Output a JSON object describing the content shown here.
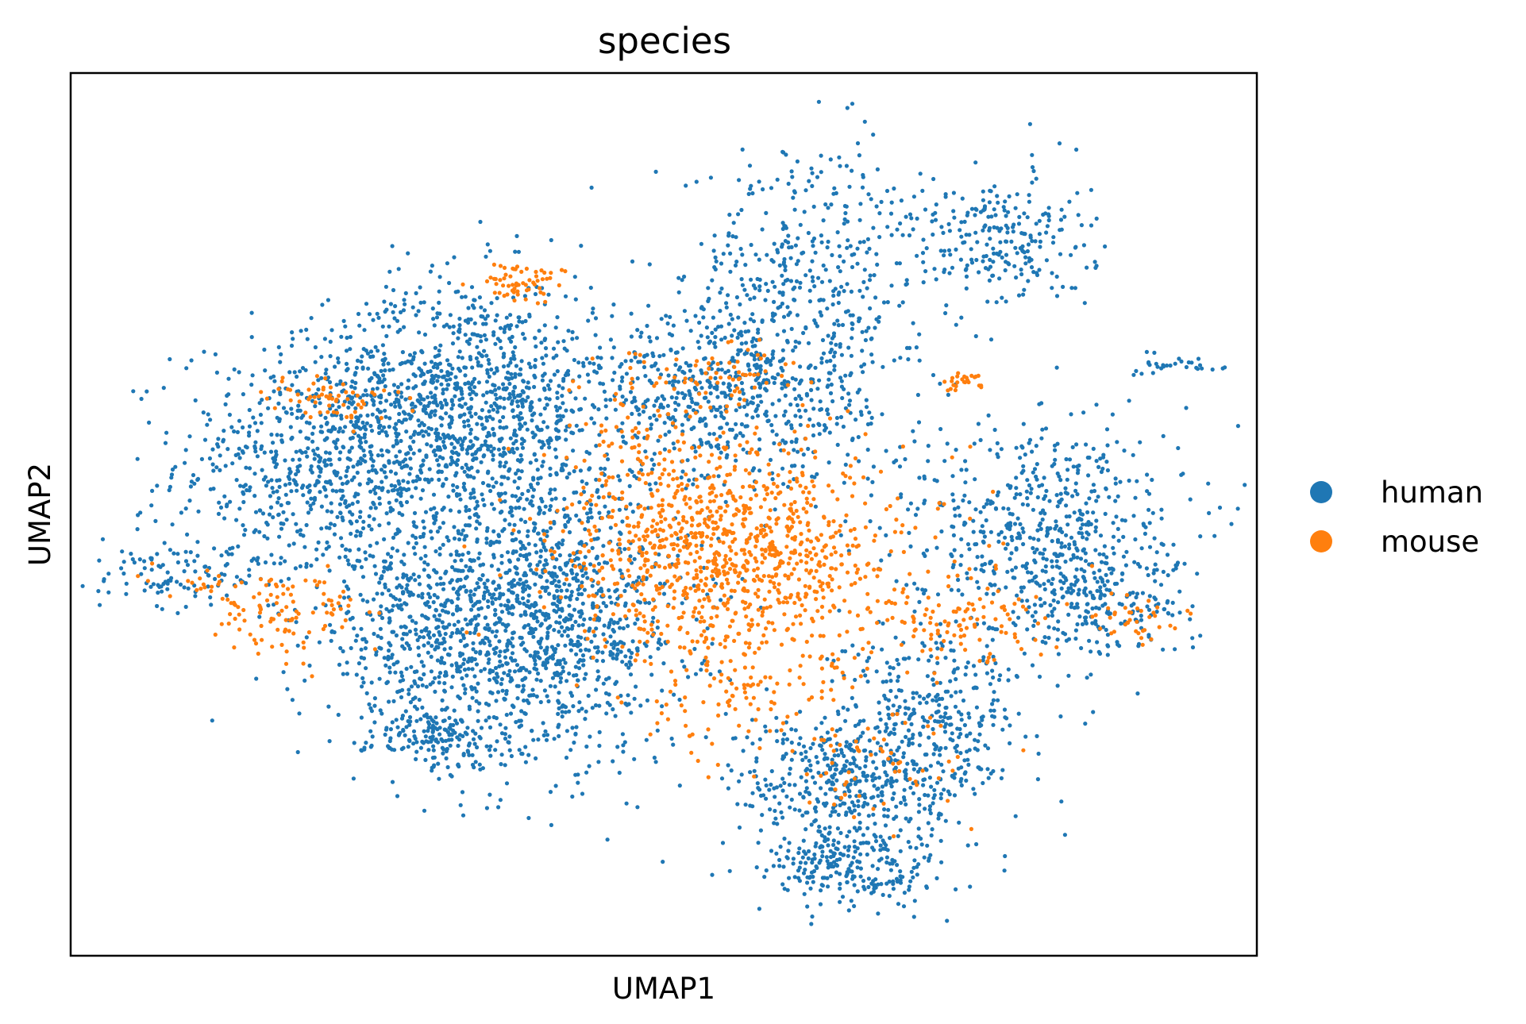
{
  "chart_data": {
    "type": "scatter",
    "title": "species",
    "xlabel": "UMAP1",
    "ylabel": "UMAP2",
    "xlim": [
      0,
      100
    ],
    "ylim": [
      0,
      100
    ],
    "ticks": "none",
    "grid": false,
    "legend_position": "right-center",
    "legend": [
      {
        "name": "human",
        "color": "#1f77b4"
      },
      {
        "name": "mouse",
        "color": "#ff7f0e"
      }
    ],
    "series": [
      {
        "name": "human",
        "color": "#1f77b4",
        "clusters": [
          {
            "cx": 22,
            "cy": 56,
            "sx": 6.5,
            "sy": 7,
            "n": 800
          },
          {
            "cx": 34,
            "cy": 63,
            "sx": 6,
            "sy": 7,
            "n": 1000
          },
          {
            "cx": 40,
            "cy": 38,
            "sx": 6,
            "sy": 8,
            "n": 1200
          },
          {
            "cx": 29,
            "cy": 37,
            "sx": 4,
            "sy": 6,
            "n": 400
          },
          {
            "cx": 31,
            "cy": 25,
            "sx": 3,
            "sy": 2,
            "n": 150
          },
          {
            "cx": 55,
            "cy": 63,
            "sx": 6,
            "sy": 5,
            "n": 550
          },
          {
            "cx": 62,
            "cy": 76,
            "sx": 5,
            "sy": 8,
            "n": 450
          },
          {
            "cx": 78,
            "cy": 81,
            "sx": 4,
            "sy": 4,
            "n": 250
          },
          {
            "cx": 94,
            "cy": 67,
            "sx": 1.8,
            "sy": 0.6,
            "n": 30
          },
          {
            "cx": 82,
            "cy": 49,
            "sx": 6,
            "sy": 6,
            "n": 550
          },
          {
            "cx": 86,
            "cy": 40,
            "sx": 4,
            "sy": 3,
            "n": 200
          },
          {
            "cx": 66,
            "cy": 20,
            "sx": 5,
            "sy": 4,
            "n": 450
          },
          {
            "cx": 66,
            "cy": 10,
            "sx": 4,
            "sy": 2.5,
            "n": 250
          },
          {
            "cx": 73,
            "cy": 28,
            "sx": 4,
            "sy": 5,
            "n": 300
          },
          {
            "cx": 9,
            "cy": 43,
            "sx": 4,
            "sy": 1.8,
            "n": 100
          }
        ]
      },
      {
        "name": "mouse",
        "color": "#ff7f0e",
        "clusters": [
          {
            "cx": 56,
            "cy": 46,
            "sx": 7,
            "sy": 6,
            "n": 1000
          },
          {
            "cx": 38,
            "cy": 76,
            "sx": 1.8,
            "sy": 1.2,
            "n": 60
          },
          {
            "cx": 55,
            "cy": 66,
            "sx": 3,
            "sy": 2,
            "n": 60
          },
          {
            "cx": 22,
            "cy": 63,
            "sx": 3,
            "sy": 1.5,
            "n": 60
          },
          {
            "cx": 18,
            "cy": 39,
            "sx": 3,
            "sy": 2.5,
            "n": 100
          },
          {
            "cx": 75,
            "cy": 65,
            "sx": 0.9,
            "sy": 0.5,
            "n": 25
          },
          {
            "cx": 75,
            "cy": 38,
            "sx": 4,
            "sy": 2.5,
            "n": 100
          },
          {
            "cx": 57,
            "cy": 30,
            "sx": 5,
            "sy": 4,
            "n": 120
          },
          {
            "cx": 68,
            "cy": 21,
            "sx": 4,
            "sy": 3,
            "n": 60
          },
          {
            "cx": 89,
            "cy": 38,
            "sx": 2.5,
            "sy": 1.5,
            "n": 40
          },
          {
            "cx": 12,
            "cy": 42,
            "sx": 2,
            "sy": 1,
            "n": 20
          },
          {
            "cx": 48,
            "cy": 58,
            "sx": 4,
            "sy": 5,
            "n": 80
          }
        ]
      }
    ]
  }
}
